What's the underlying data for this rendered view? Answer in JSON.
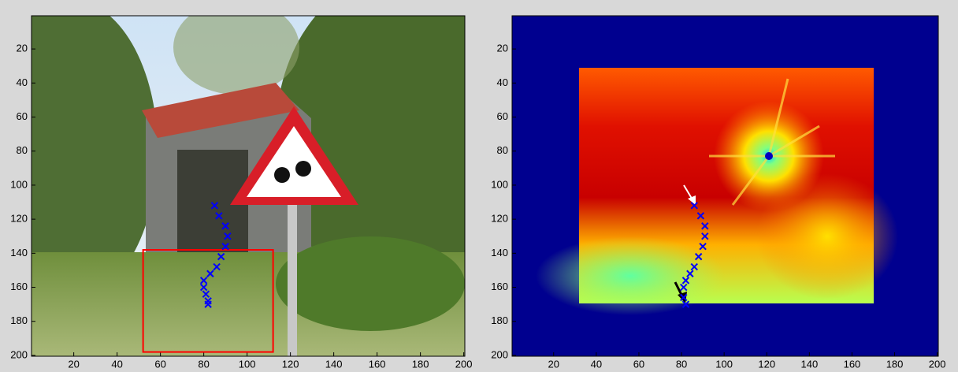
{
  "chart_data": [
    {
      "type": "scatter",
      "xlim": [
        0.5,
        200.5
      ],
      "ylim": [
        0.5,
        200.5
      ],
      "y_reversed": true,
      "xticks": [
        20,
        40,
        60,
        80,
        100,
        120,
        140,
        160,
        180,
        200
      ],
      "yticks": [
        20,
        40,
        60,
        80,
        100,
        120,
        140,
        160,
        180,
        200
      ],
      "color": "#0000ff",
      "x": [
        85,
        87,
        90,
        91,
        90,
        88,
        86,
        83,
        80,
        80,
        81,
        82,
        82
      ],
      "values": [
        112,
        118,
        124,
        130,
        136,
        142,
        148,
        152,
        156,
        160,
        164,
        168,
        170
      ],
      "box": {
        "x": [
          52,
          112
        ],
        "y": [
          138,
          198
        ],
        "color": "#ff0000"
      }
    },
    {
      "type": "scatter",
      "xlim": [
        0.5,
        200.5
      ],
      "ylim": [
        0.5,
        200.5
      ],
      "y_reversed": true,
      "xticks": [
        20,
        40,
        60,
        80,
        100,
        120,
        140,
        160,
        180,
        200
      ],
      "yticks": [
        20,
        40,
        60,
        80,
        100,
        120,
        140,
        160,
        180,
        200
      ],
      "color": "#0000ff",
      "x": [
        86,
        89,
        91,
        91,
        90,
        88,
        86,
        84,
        82,
        81,
        81,
        82
      ],
      "values": [
        112,
        118,
        124,
        130,
        136,
        142,
        148,
        152,
        156,
        160,
        166,
        170
      ]
    }
  ]
}
